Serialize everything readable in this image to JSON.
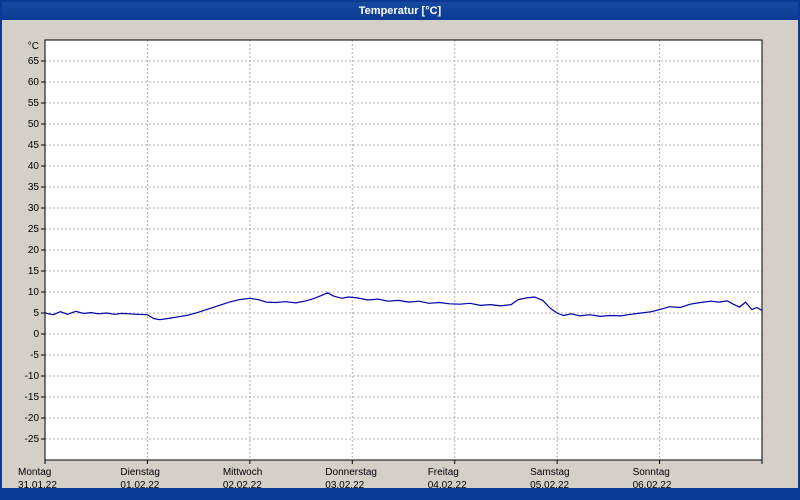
{
  "window": {
    "title": "Temperatur [°C]",
    "colors": {
      "titlebar": "#0a3a96",
      "background": "#d4d0c8",
      "plot_background": "#ffffff",
      "grid": "#b0b0b0",
      "frame": "#000000",
      "line": "#0000a8",
      "bottombar": "#0a3a96"
    }
  },
  "chart_data": {
    "type": "line",
    "title": "Temperatur [°C]",
    "y_unit_label": "°C",
    "ylim": [
      -30,
      70
    ],
    "ytick_min": -25,
    "ytick_max": 65,
    "ytick_step": 5,
    "grid": "dashed",
    "legend": "none",
    "xlim_days": [
      0,
      7
    ],
    "x_days": [
      {
        "name": "Montag",
        "date": "31.01.22"
      },
      {
        "name": "Dienstag",
        "date": "01.02.22"
      },
      {
        "name": "Mittwoch",
        "date": "02.02.22"
      },
      {
        "name": "Donnerstag",
        "date": "03.02.22"
      },
      {
        "name": "Freitag",
        "date": "04.02.22"
      },
      {
        "name": "Samstag",
        "date": "05.02.22"
      },
      {
        "name": "Sonntag",
        "date": "06.02.22"
      }
    ],
    "series": [
      {
        "name": "Temperatur",
        "color": "#0000a8",
        "x": [
          0.0,
          0.08,
          0.15,
          0.22,
          0.3,
          0.38,
          0.45,
          0.52,
          0.6,
          0.68,
          0.75,
          0.82,
          0.9,
          1.0,
          1.06,
          1.12,
          1.2,
          1.3,
          1.4,
          1.5,
          1.6,
          1.7,
          1.8,
          1.9,
          2.0,
          2.08,
          2.16,
          2.25,
          2.35,
          2.45,
          2.55,
          2.62,
          2.7,
          2.76,
          2.82,
          2.9,
          2.96,
          3.05,
          3.15,
          3.25,
          3.35,
          3.45,
          3.55,
          3.65,
          3.75,
          3.85,
          3.95,
          4.05,
          4.15,
          4.25,
          4.35,
          4.45,
          4.55,
          4.62,
          4.7,
          4.78,
          4.86,
          4.93,
          5.0,
          5.06,
          5.14,
          5.22,
          5.32,
          5.42,
          5.52,
          5.62,
          5.72,
          5.82,
          5.92,
          6.0,
          6.1,
          6.2,
          6.3,
          6.4,
          6.5,
          6.58,
          6.66,
          6.72,
          6.78,
          6.84,
          6.9,
          6.95,
          7.0
        ],
        "y": [
          5.0,
          4.6,
          5.3,
          4.7,
          5.4,
          4.9,
          5.1,
          4.8,
          5.0,
          4.7,
          4.9,
          4.8,
          4.7,
          4.6,
          3.7,
          3.4,
          3.7,
          4.1,
          4.5,
          5.2,
          6.0,
          6.8,
          7.6,
          8.2,
          8.5,
          8.2,
          7.6,
          7.5,
          7.7,
          7.4,
          7.9,
          8.4,
          9.2,
          9.8,
          9.0,
          8.5,
          8.8,
          8.6,
          8.1,
          8.3,
          7.8,
          8.0,
          7.6,
          7.8,
          7.3,
          7.5,
          7.2,
          7.1,
          7.3,
          6.8,
          7.0,
          6.7,
          7.0,
          8.2,
          8.6,
          8.8,
          8.0,
          6.2,
          5.0,
          4.4,
          4.8,
          4.3,
          4.6,
          4.2,
          4.4,
          4.3,
          4.7,
          5.0,
          5.3,
          5.8,
          6.5,
          6.3,
          7.1,
          7.5,
          7.8,
          7.6,
          7.9,
          7.1,
          6.4,
          7.6,
          5.8,
          6.3,
          5.6
        ]
      }
    ]
  }
}
